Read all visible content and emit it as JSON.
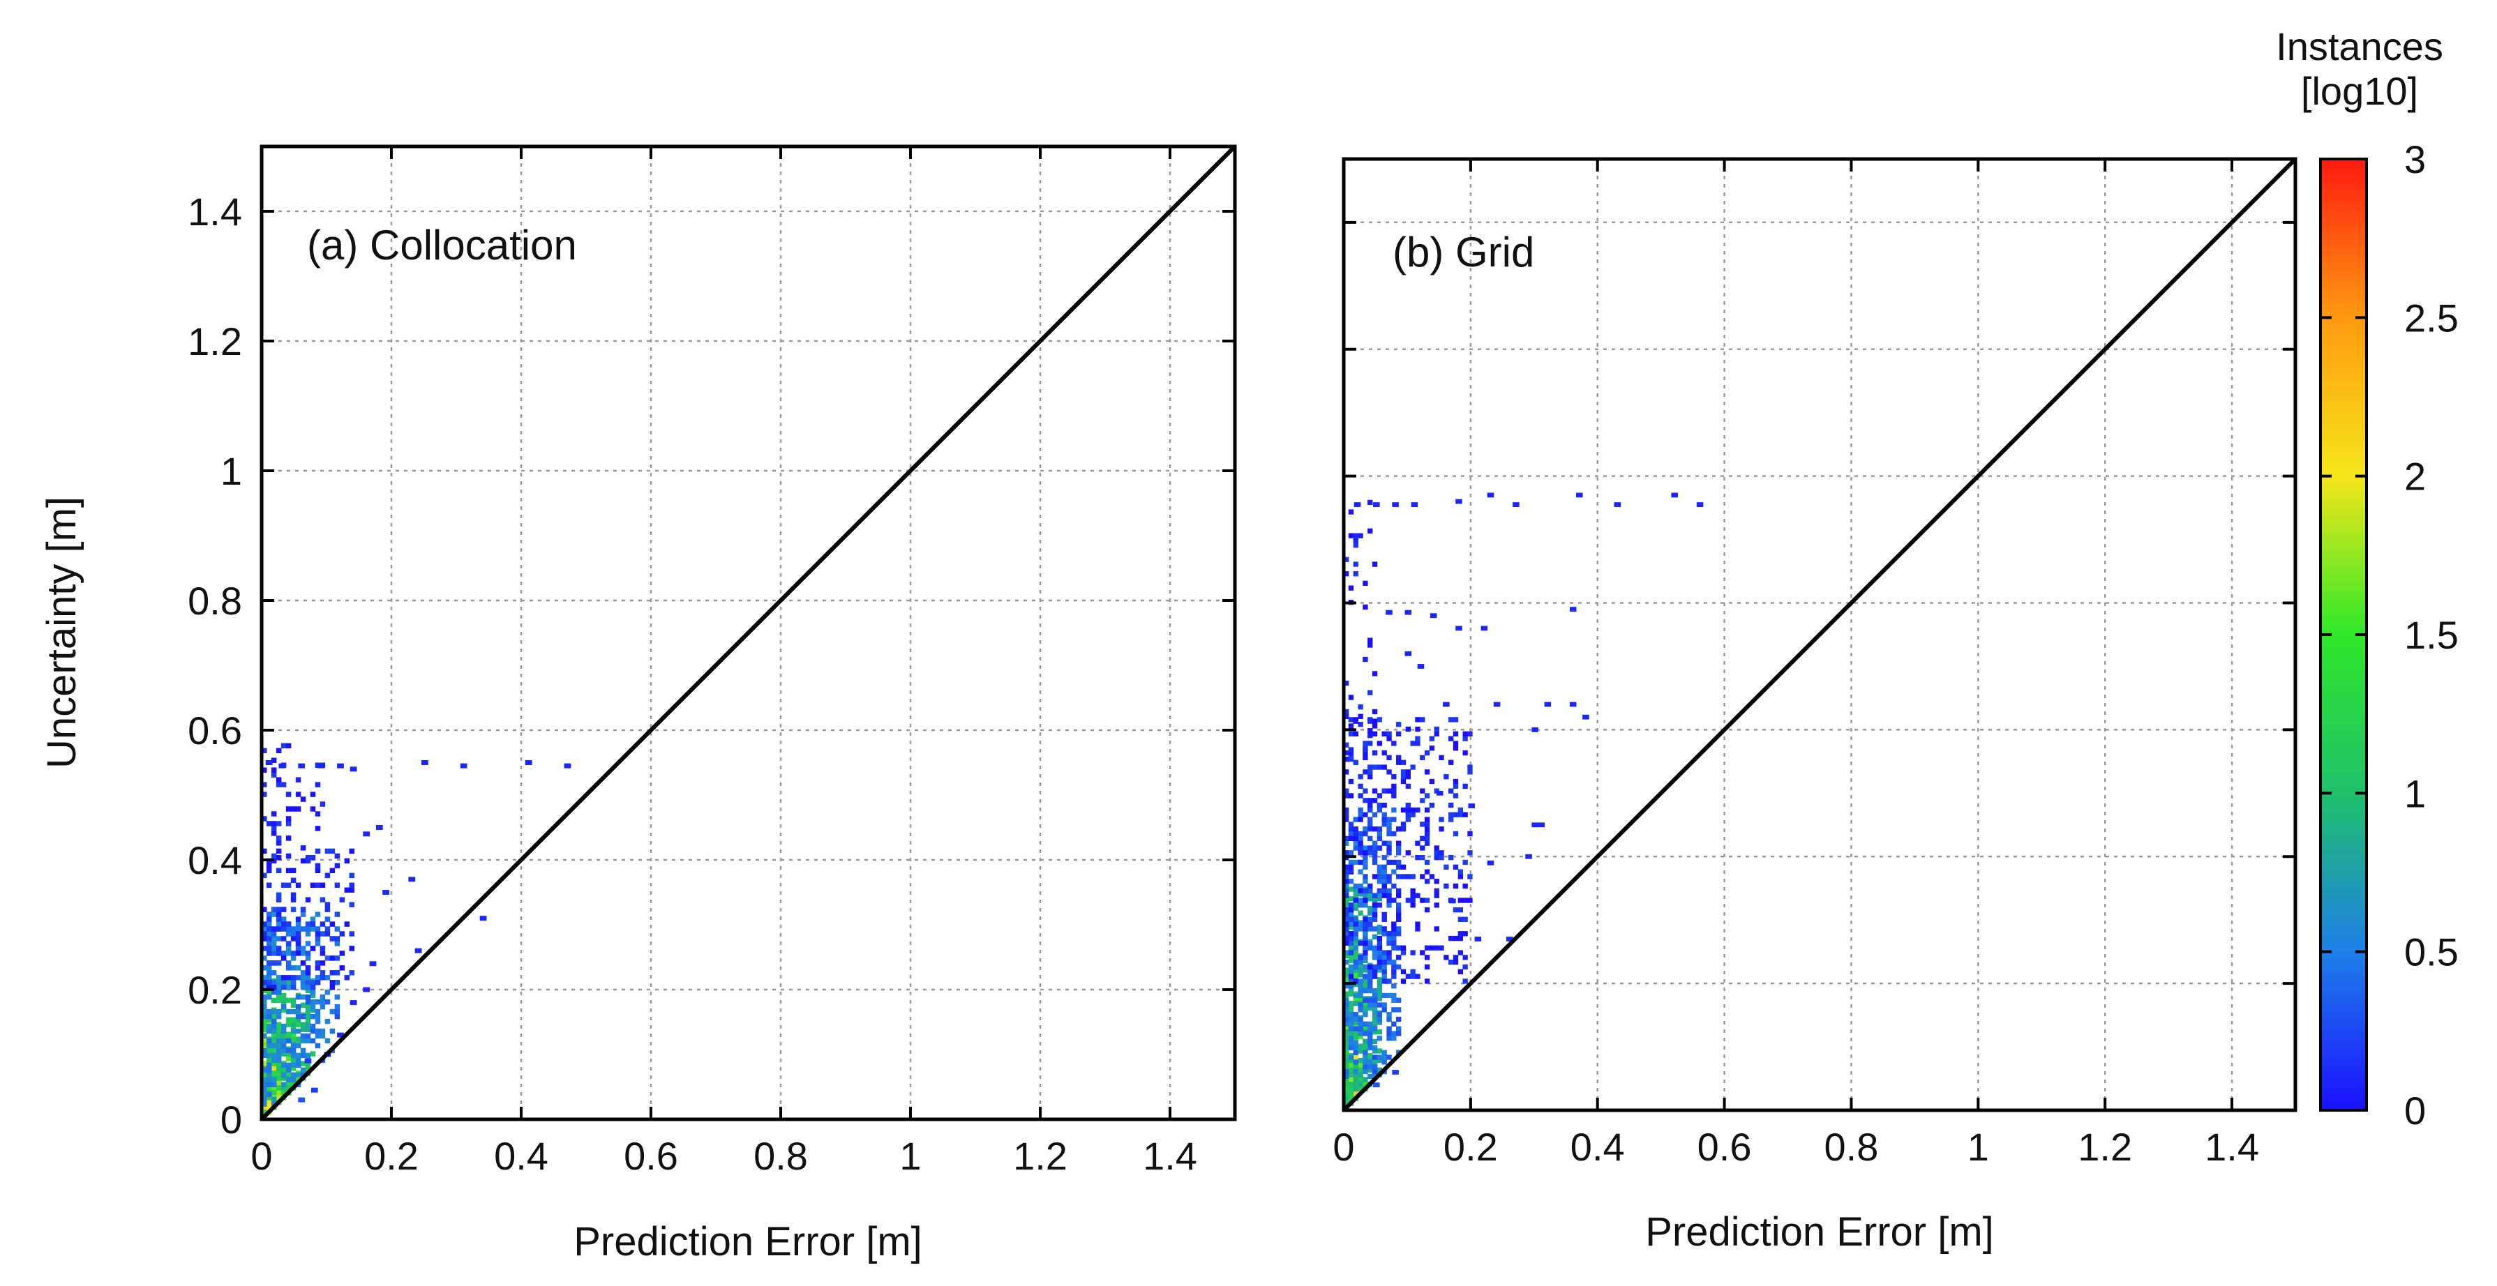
{
  "chart_data": [
    {
      "type": "heatmap",
      "panel_label": "(a) Collocation",
      "xlabel": "Prediction Error [m]",
      "ylabel": "Uncertainty [m]",
      "xlim": [
        0,
        1.5
      ],
      "ylim": [
        0,
        1.5
      ],
      "xticks": [
        "0",
        "0.2",
        "0.4",
        "0.6",
        "0.8",
        "1",
        "1.2",
        "1.4"
      ],
      "yticks": [
        "0",
        "0.2",
        "0.4",
        "0.6",
        "0.8",
        "1",
        "1.2",
        "1.4"
      ],
      "grid": true,
      "reference_line": "y = x",
      "clusters": [
        {
          "x": [
            0.0,
            0.04
          ],
          "y": [
            0.0,
            0.08
          ],
          "level": 2.7,
          "density": 1.0
        },
        {
          "x": [
            0.0,
            0.06
          ],
          "y": [
            0.0,
            0.15
          ],
          "level": 2.0,
          "density": 0.9
        },
        {
          "x": [
            0.0,
            0.08
          ],
          "y": [
            0.0,
            0.22
          ],
          "level": 1.3,
          "density": 0.8
        },
        {
          "x": [
            0.0,
            0.12
          ],
          "y": [
            0.02,
            0.32
          ],
          "level": 0.6,
          "density": 0.55
        },
        {
          "x": [
            0.0,
            0.14
          ],
          "y": [
            0.2,
            0.42
          ],
          "level": 0.15,
          "density": 0.3
        },
        {
          "x": [
            0.0,
            0.1
          ],
          "y": [
            0.4,
            0.58
          ],
          "level": 0.05,
          "density": 0.2
        }
      ],
      "points": [
        {
          "x": 0.01,
          "y": 0.55,
          "v": 0.1
        },
        {
          "x": 0.03,
          "y": 0.545,
          "v": 0.1
        },
        {
          "x": 0.06,
          "y": 0.545,
          "v": 0.1
        },
        {
          "x": 0.09,
          "y": 0.545,
          "v": 0.1
        },
        {
          "x": 0.12,
          "y": 0.545,
          "v": 0.1
        },
        {
          "x": 0.14,
          "y": 0.54,
          "v": 0.1
        },
        {
          "x": 0.25,
          "y": 0.55,
          "v": 0.1
        },
        {
          "x": 0.31,
          "y": 0.545,
          "v": 0.1
        },
        {
          "x": 0.41,
          "y": 0.55,
          "v": 0.1
        },
        {
          "x": 0.47,
          "y": 0.545,
          "v": 0.1
        },
        {
          "x": 0.16,
          "y": 0.44,
          "v": 0.1
        },
        {
          "x": 0.18,
          "y": 0.45,
          "v": 0.1
        },
        {
          "x": 0.23,
          "y": 0.37,
          "v": 0.1
        },
        {
          "x": 0.19,
          "y": 0.35,
          "v": 0.1
        },
        {
          "x": 0.34,
          "y": 0.31,
          "v": 0.1
        },
        {
          "x": 0.24,
          "y": 0.26,
          "v": 0.1
        },
        {
          "x": 0.17,
          "y": 0.24,
          "v": 0.1
        },
        {
          "x": 0.16,
          "y": 0.2,
          "v": 0.1
        },
        {
          "x": 0.14,
          "y": 0.18,
          "v": 0.1
        },
        {
          "x": 0.12,
          "y": 0.13,
          "v": 0.1
        },
        {
          "x": 0.08,
          "y": 0.045,
          "v": 0.2
        },
        {
          "x": 0.06,
          "y": 0.03,
          "v": 0.3
        },
        {
          "x": 0.07,
          "y": 0.09,
          "v": 0.2
        },
        {
          "x": 0.1,
          "y": 0.1,
          "v": 0.1
        }
      ]
    },
    {
      "type": "heatmap",
      "panel_label": "(b) Grid",
      "xlabel": "Prediction Error [m]",
      "ylabel": "",
      "xlim": [
        0,
        1.5
      ],
      "ylim": [
        0,
        1.5
      ],
      "xticks": [
        "0",
        "0.2",
        "0.4",
        "0.6",
        "0.8",
        "1",
        "1.2",
        "1.4"
      ],
      "yticks": [],
      "grid": true,
      "reference_line": "y = x",
      "clusters": [
        {
          "x": [
            0.0,
            0.03
          ],
          "y": [
            0.0,
            0.1
          ],
          "level": 2.6,
          "density": 1.0
        },
        {
          "x": [
            0.0,
            0.04
          ],
          "y": [
            0.0,
            0.22
          ],
          "level": 1.8,
          "density": 0.9
        },
        {
          "x": [
            0.0,
            0.06
          ],
          "y": [
            0.0,
            0.35
          ],
          "level": 1.1,
          "density": 0.8
        },
        {
          "x": [
            0.0,
            0.09
          ],
          "y": [
            0.05,
            0.48
          ],
          "level": 0.5,
          "density": 0.55
        },
        {
          "x": [
            0.0,
            0.2
          ],
          "y": [
            0.2,
            0.62
          ],
          "level": 0.1,
          "density": 0.3
        },
        {
          "x": [
            0.0,
            0.05
          ],
          "y": [
            0.55,
            0.96
          ],
          "level": 0.05,
          "density": 0.15
        }
      ],
      "points": [
        {
          "x": 0.02,
          "y": 0.955,
          "v": 0.1
        },
        {
          "x": 0.05,
          "y": 0.955,
          "v": 0.1
        },
        {
          "x": 0.08,
          "y": 0.955,
          "v": 0.1
        },
        {
          "x": 0.11,
          "y": 0.955,
          "v": 0.1
        },
        {
          "x": 0.18,
          "y": 0.96,
          "v": 0.1
        },
        {
          "x": 0.23,
          "y": 0.97,
          "v": 0.1
        },
        {
          "x": 0.27,
          "y": 0.955,
          "v": 0.1
        },
        {
          "x": 0.37,
          "y": 0.97,
          "v": 0.1
        },
        {
          "x": 0.43,
          "y": 0.955,
          "v": 0.1
        },
        {
          "x": 0.52,
          "y": 0.97,
          "v": 0.1
        },
        {
          "x": 0.56,
          "y": 0.955,
          "v": 0.1
        },
        {
          "x": 0.07,
          "y": 0.785,
          "v": 0.1
        },
        {
          "x": 0.1,
          "y": 0.785,
          "v": 0.1
        },
        {
          "x": 0.14,
          "y": 0.78,
          "v": 0.1
        },
        {
          "x": 0.18,
          "y": 0.76,
          "v": 0.1
        },
        {
          "x": 0.22,
          "y": 0.76,
          "v": 0.1
        },
        {
          "x": 0.36,
          "y": 0.79,
          "v": 0.1
        },
        {
          "x": 0.12,
          "y": 0.7,
          "v": 0.1
        },
        {
          "x": 0.1,
          "y": 0.72,
          "v": 0.1
        },
        {
          "x": 0.16,
          "y": 0.64,
          "v": 0.1
        },
        {
          "x": 0.24,
          "y": 0.64,
          "v": 0.1
        },
        {
          "x": 0.32,
          "y": 0.64,
          "v": 0.1
        },
        {
          "x": 0.36,
          "y": 0.64,
          "v": 0.1
        },
        {
          "x": 0.3,
          "y": 0.6,
          "v": 0.1
        },
        {
          "x": 0.38,
          "y": 0.62,
          "v": 0.1
        },
        {
          "x": 0.3,
          "y": 0.45,
          "v": 0.1
        },
        {
          "x": 0.31,
          "y": 0.45,
          "v": 0.1
        },
        {
          "x": 0.29,
          "y": 0.4,
          "v": 0.1
        },
        {
          "x": 0.23,
          "y": 0.39,
          "v": 0.1
        },
        {
          "x": 0.26,
          "y": 0.27,
          "v": 0.1
        },
        {
          "x": 0.21,
          "y": 0.27,
          "v": 0.1
        },
        {
          "x": 0.17,
          "y": 0.33,
          "v": 0.1
        },
        {
          "x": 0.2,
          "y": 0.48,
          "v": 0.1
        },
        {
          "x": 0.15,
          "y": 0.5,
          "v": 0.1
        },
        {
          "x": 0.08,
          "y": 0.06,
          "v": 0.2
        },
        {
          "x": 0.05,
          "y": 0.04,
          "v": 0.3
        }
      ]
    }
  ],
  "colorbar": {
    "title_line1": "Instances",
    "title_line2": "[log10]",
    "range": [
      0,
      3
    ],
    "ticks": [
      "0",
      "0.5",
      "1",
      "1.5",
      "2",
      "2.5",
      "3"
    ],
    "colors": [
      "#1a10ff",
      "#1f7fe8",
      "#1fc06a",
      "#2ee82a",
      "#f5e61a",
      "#ff9a10",
      "#ff1a10"
    ]
  }
}
